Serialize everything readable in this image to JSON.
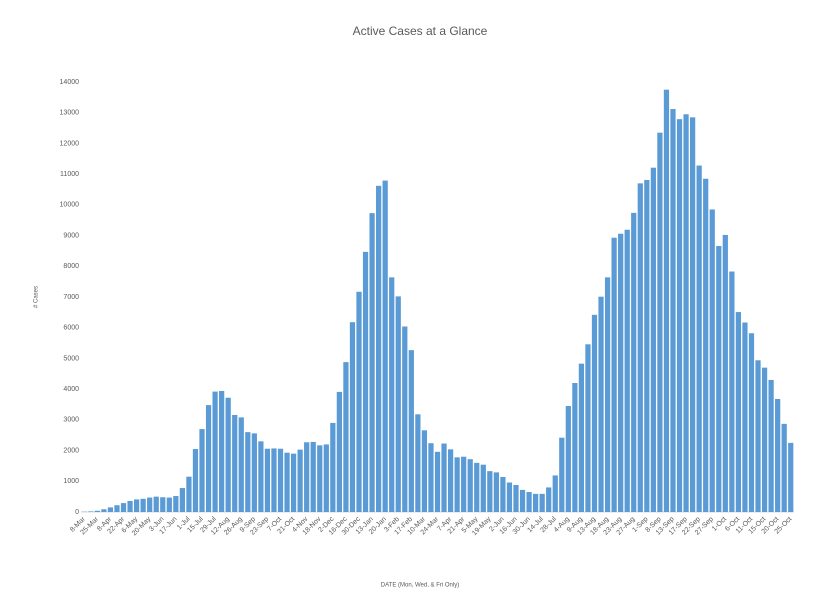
{
  "chart_data": {
    "type": "bar",
    "title": "Active Cases at a Glance",
    "x_label": "DATE  (Mon, Wed, & Fri Only)",
    "y_label": "# Cases",
    "color": "#5b9bd5",
    "categories": [
      "8-Mar",
      null,
      "25-Mar",
      null,
      "8-Apr",
      null,
      "22-Apr",
      null,
      "6-May",
      null,
      "20-May",
      null,
      "3-Jun",
      null,
      "17-Jun",
      null,
      "1-Jul",
      null,
      "15-Jul",
      null,
      "29-Jul",
      null,
      "12-Aug",
      null,
      "26-Aug",
      null,
      "9-Sep",
      null,
      "23-Sep",
      null,
      "7-Oct",
      null,
      "21-Oct",
      null,
      "4-Nov",
      null,
      "18-Nov",
      null,
      "2-Dec",
      null,
      "16-Dec",
      null,
      "30-Dec",
      null,
      "13-Jan",
      null,
      "20-Jan",
      null,
      "3-Feb",
      null,
      "17-Feb",
      null,
      "10-Mar",
      null,
      "24-Mar",
      null,
      "7-Apr",
      null,
      "21-Apr",
      null,
      "5-May",
      null,
      "19-May",
      null,
      "2-Jun",
      null,
      "16-Jun",
      null,
      "30-Jun",
      null,
      "14-Jul",
      null,
      "28-Jul",
      null,
      "4-Aug",
      null,
      "9-Aug",
      null,
      "13-Aug",
      null,
      "18-Aug",
      null,
      "23-Aug",
      null,
      "27-Aug",
      null,
      "1-Sep",
      null,
      "8-Sep",
      null,
      "13-Sep",
      null,
      "17-Sep",
      null,
      "22-Sep",
      null,
      "27-Sep",
      null,
      "1-Oct",
      null,
      "6-Oct",
      null,
      "11-Oct",
      null,
      "15-Oct",
      null,
      "20-Oct",
      null,
      "25-Oct"
    ],
    "values": [
      10,
      20,
      40,
      90,
      150,
      220,
      290,
      360,
      410,
      430,
      470,
      500,
      480,
      470,
      520,
      780,
      1150,
      2050,
      2700,
      3480,
      3920,
      3940,
      3720,
      3160,
      3080,
      2600,
      2560,
      2300,
      2060,
      2070,
      2060,
      1930,
      1900,
      2030,
      2270,
      2280,
      2170,
      2200,
      2900,
      3910,
      4880,
      6180,
      7170,
      8470,
      9730,
      10620,
      10790,
      7640,
      7020,
      6040,
      5270,
      3180,
      2660,
      2240,
      1960,
      2230,
      2040,
      1780,
      1800,
      1720,
      1600,
      1540,
      1330,
      1290,
      1140,
      960,
      880,
      720,
      650,
      590,
      590,
      800,
      1190,
      2420,
      3450,
      4200,
      4830,
      5460,
      6420,
      7010,
      7640,
      8930,
      9060,
      9190,
      9740,
      10700,
      10810,
      11210,
      12350,
      13750,
      13120,
      12790,
      12950,
      12850,
      11280,
      10850,
      9850,
      8660,
      9020,
      7830,
      6510,
      6170,
      5820,
      4940,
      4700,
      4300,
      3680,
      2870,
      2250
    ],
    "ylim": [
      0,
      14000
    ],
    "yticks": [
      0,
      1000,
      2000,
      3000,
      4000,
      5000,
      6000,
      7000,
      8000,
      9000,
      10000,
      11000,
      12000,
      13000,
      14000
    ],
    "grid": false
  }
}
